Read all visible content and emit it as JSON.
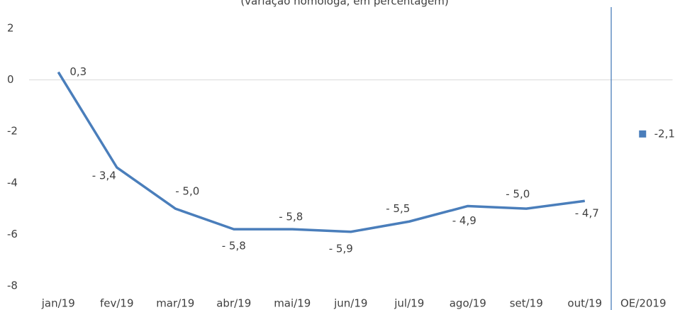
{
  "chart_data": {
    "type": "line",
    "subtitle": "(variação homóloga, em percentagem)",
    "categories": [
      "jan/19",
      "fev/19",
      "mar/19",
      "abr/19",
      "mai/19",
      "jun/19",
      "jul/19",
      "ago/19",
      "set/19",
      "out/19",
      "OE/2019"
    ],
    "series": [
      {
        "color": "#4a7ebb",
        "values": [
          0.3,
          -3.4,
          -5.0,
          -5.8,
          -5.8,
          -5.9,
          -5.5,
          -4.9,
          -5.0,
          -4.7,
          null
        ],
        "value_labels": [
          "0,3",
          "- 3,4",
          "- 5,0",
          "- 5,8",
          "- 5,8",
          "- 5,9",
          "- 5,5",
          "- 4,9",
          "- 5,0",
          "- 4,7",
          null
        ]
      },
      {
        "color": "#4a7ebb",
        "values": [
          null,
          null,
          null,
          null,
          null,
          null,
          null,
          null,
          null,
          null,
          -2.1
        ],
        "value_labels": [
          null,
          null,
          null,
          null,
          null,
          null,
          null,
          null,
          null,
          null,
          "-2,1"
        ]
      }
    ],
    "ylim": [
      -8,
      2
    ],
    "yticks": [
      -8,
      -6,
      -4,
      -2,
      0,
      2
    ],
    "grid": false
  }
}
